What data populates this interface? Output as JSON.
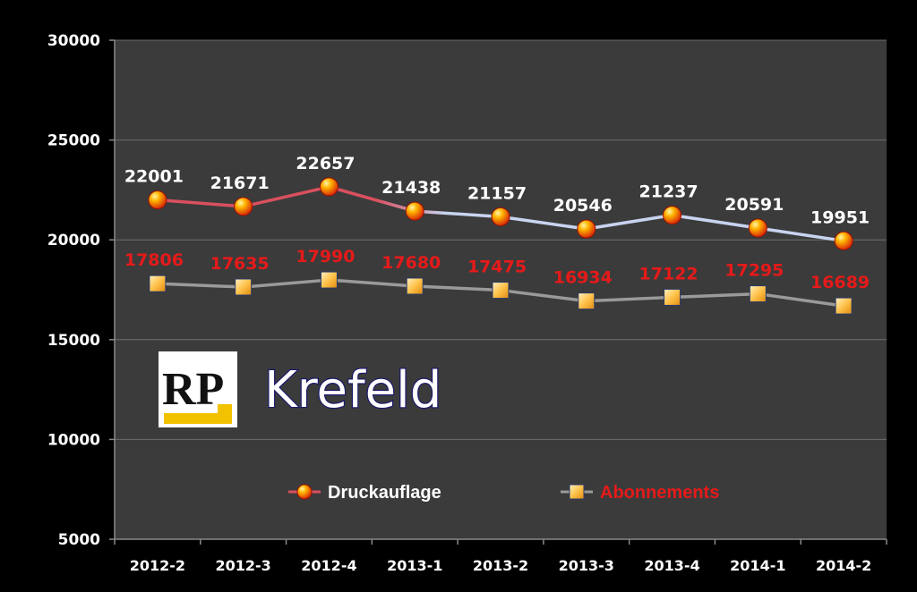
{
  "logo": {
    "text": "RP"
  },
  "city_label": "Krefeld",
  "colors": {
    "background": "#000000",
    "plot_area": "#3b3b3b",
    "gridline": "#6e6e6e",
    "series_a_line_start": "#d9505e",
    "series_a_line_end": "#c8d4f0",
    "series_b_line": "#9a9a9a",
    "series_b_label": "#e61a1a",
    "logo_accent": "#f2c200"
  },
  "chart_data": {
    "type": "line",
    "title": "",
    "xlabel": "",
    "ylabel": "",
    "categories": [
      "2012-2",
      "2012-3",
      "2012-4",
      "2013-1",
      "2013-2",
      "2013-3",
      "2013-4",
      "2014-1",
      "2014-2"
    ],
    "ylim": [
      5000,
      30000
    ],
    "yticks": [
      5000,
      10000,
      15000,
      20000,
      25000,
      30000
    ],
    "grid": true,
    "legend_position": "bottom-center",
    "series": [
      {
        "name": "Druckauflage",
        "marker": "circle",
        "values": [
          22001,
          21671,
          22657,
          21438,
          21157,
          20546,
          21237,
          20591,
          19951
        ]
      },
      {
        "name": "Abonnements",
        "marker": "square",
        "values": [
          17806,
          17635,
          17990,
          17680,
          17475,
          16934,
          17122,
          17295,
          16689
        ]
      }
    ]
  }
}
